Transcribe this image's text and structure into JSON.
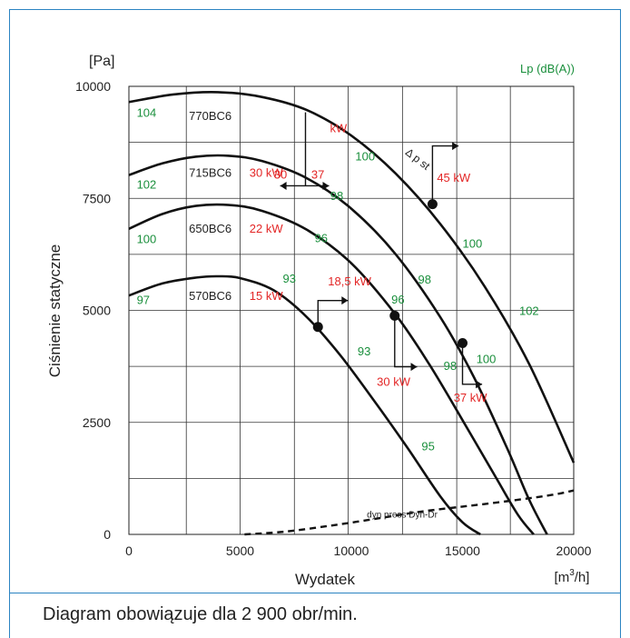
{
  "chart_data": {
    "type": "line",
    "title": "",
    "xlabel": "Wydatek",
    "ylabel": "Ciśnienie statyczne",
    "x_unit_html": "[m³/h]",
    "y_unit": "[Pa]",
    "right_label": "Lp (dB(A))",
    "xlim": [
      0,
      20000
    ],
    "ylim": [
      0,
      10000
    ],
    "x_ticks": [
      "0",
      "5000",
      "10000",
      "15000",
      "20000"
    ],
    "y_ticks": [
      "0",
      "2500",
      "5000",
      "7500",
      "10000"
    ],
    "x_tick_values": [
      0,
      5000,
      10000,
      15000,
      20000
    ],
    "y_tick_values": [
      0,
      2500,
      5000,
      7500,
      10000
    ],
    "grid": true,
    "grid_x": [
      2580,
      5000,
      7440,
      9860,
      12300,
      14740,
      17150,
      20000
    ],
    "grid_y": [
      0,
      1250,
      2500,
      3750,
      5000,
      6250,
      7500,
      8750,
      10000
    ],
    "colors": {
      "curve": "#111111",
      "power": "#e32626",
      "noise": "#1a8f3c",
      "frame": "#2a83c2",
      "text": "#222222"
    },
    "series": [
      {
        "name": "770BC6",
        "x": [
          0,
          2000,
          4000,
          6000,
          8000,
          10000,
          12000,
          14000,
          16000,
          18000,
          20000
        ],
        "y": [
          9650,
          9820,
          9870,
          9760,
          9470,
          8900,
          8050,
          6930,
          5530,
          3800,
          1600
        ]
      },
      {
        "name": "715BC6",
        "x": [
          0,
          1500,
          3000,
          4500,
          6000,
          8000,
          10000,
          12000,
          14000,
          15500,
          17000,
          18000,
          18800
        ],
        "y": [
          8020,
          8280,
          8430,
          8450,
          8330,
          7950,
          7270,
          6250,
          4850,
          3520,
          1930,
          770,
          0
        ]
      },
      {
        "name": "650BC6",
        "x": [
          0,
          1500,
          3000,
          4500,
          6000,
          8000,
          10000,
          12000,
          13500,
          15000,
          16500,
          17500,
          18200
        ],
        "y": [
          6820,
          7150,
          7330,
          7350,
          7220,
          6800,
          6050,
          4900,
          3800,
          2550,
          1270,
          430,
          0
        ]
      },
      {
        "name": "570BC6",
        "x": [
          0,
          1500,
          3000,
          4000,
          5000,
          6500,
          8000,
          9500,
          11000,
          12500,
          14000,
          15000,
          15800
        ],
        "y": [
          5330,
          5600,
          5730,
          5760,
          5720,
          5450,
          4850,
          4000,
          3000,
          1950,
          850,
          270,
          0
        ]
      },
      {
        "name": "dyn press  Dyn-Dr",
        "dashed": true,
        "x": [
          5200,
          7000,
          9000,
          11000,
          13000,
          15000,
          17000,
          19000,
          20000
        ],
        "y": [
          0,
          60,
          190,
          340,
          500,
          620,
          740,
          880,
          980
        ]
      }
    ],
    "points": [
      {
        "x": 8500,
        "y": 4630
      },
      {
        "x": 11950,
        "y": 4880
      },
      {
        "x": 13650,
        "y": 7370
      },
      {
        "x": 15000,
        "y": 4270
      }
    ],
    "curve_labels": [
      {
        "text": "770BC6",
        "x": 2700,
        "y": 9350
      },
      {
        "text": "715BC6",
        "x": 2700,
        "y": 8080
      },
      {
        "text": "650BC6",
        "x": 2700,
        "y": 6840
      },
      {
        "text": "570BC6",
        "x": 2700,
        "y": 5330
      }
    ],
    "noise_labels": [
      {
        "text": "104",
        "x": 350,
        "y": 9420
      },
      {
        "text": "102",
        "x": 350,
        "y": 7820
      },
      {
        "text": "100",
        "x": 350,
        "y": 6600
      },
      {
        "text": "97",
        "x": 350,
        "y": 5240
      },
      {
        "text": "100",
        "x": 10180,
        "y": 8450
      },
      {
        "text": "98",
        "x": 9050,
        "y": 7570
      },
      {
        "text": "96",
        "x": 8350,
        "y": 6620
      },
      {
        "text": "93",
        "x": 6920,
        "y": 5720
      },
      {
        "text": "100",
        "x": 15000,
        "y": 6500
      },
      {
        "text": "98",
        "x": 13000,
        "y": 5700
      },
      {
        "text": "96",
        "x": 11800,
        "y": 5250
      },
      {
        "text": "93",
        "x": 10280,
        "y": 4100
      },
      {
        "text": "102",
        "x": 17550,
        "y": 5000
      },
      {
        "text": "100",
        "x": 15620,
        "y": 3920
      },
      {
        "text": "98",
        "x": 14150,
        "y": 3770
      },
      {
        "text": "95",
        "x": 13160,
        "y": 1980
      }
    ],
    "power_labels": [
      {
        "text": "kW",
        "x": 9040,
        "y": 9080
      },
      {
        "text": "30",
        "x": 6520,
        "y": 8040
      },
      {
        "text": "37",
        "x": 8200,
        "y": 8040
      },
      {
        "text": "30 kW",
        "x": 5420,
        "y": 8080
      },
      {
        "text": "22 kW",
        "x": 5420,
        "y": 6840
      },
      {
        "text": "15 kW",
        "x": 5420,
        "y": 5330
      },
      {
        "text": "45 kW",
        "x": 13850,
        "y": 7970
      },
      {
        "text": "18,5 kW",
        "x": 8950,
        "y": 5660
      },
      {
        "text": "30 kW",
        "x": 11150,
        "y": 3420
      },
      {
        "text": "37 kW",
        "x": 14600,
        "y": 3060
      }
    ],
    "annotations": [
      {
        "text": "Δ p st",
        "x": 12400,
        "y": 8500
      }
    ],
    "caption": "Diagram obowiązuje dla 2 900 obr/min."
  }
}
